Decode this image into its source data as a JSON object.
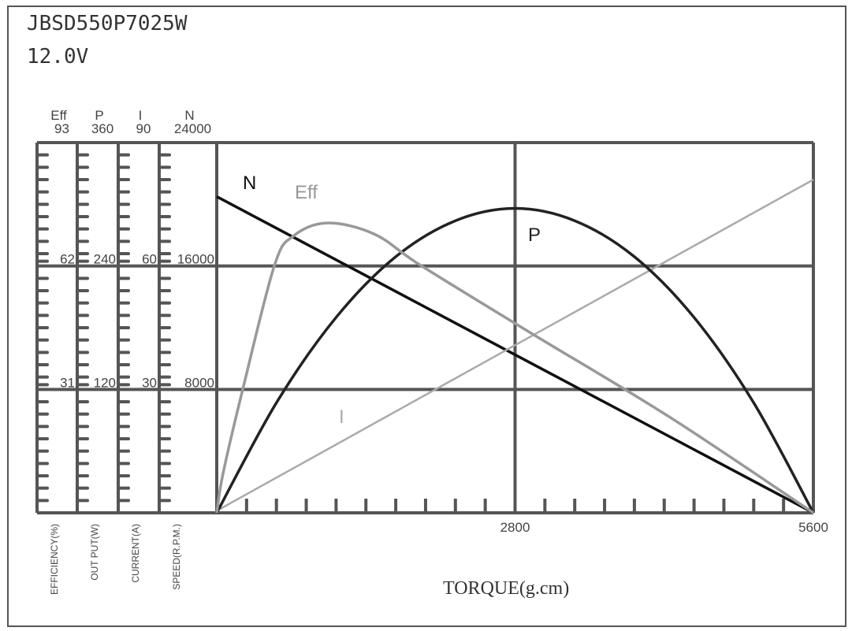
{
  "header": {
    "model": "JBSD550P7025W",
    "voltage": "12.0V"
  },
  "chart_data": {
    "type": "line",
    "xlabel": "TORQUE(g.cm)",
    "xlim": [
      0,
      5600
    ],
    "x_ticks": [
      "2800",
      "5600"
    ],
    "x_minor_step": 280,
    "grid": true,
    "axes": [
      {
        "key": "eff",
        "symbol": "Eff",
        "label": "EFFICIENCY(%)",
        "max": 93,
        "ticks": [
          "31",
          "62",
          "93"
        ]
      },
      {
        "key": "p",
        "symbol": "P",
        "label": "OUT PUT(W)",
        "max": 360,
        "ticks": [
          "120",
          "240",
          "360"
        ]
      },
      {
        "key": "i",
        "symbol": "I",
        "label": "CURRENT(A)",
        "max": 90,
        "ticks": [
          "30",
          "60",
          "90"
        ]
      },
      {
        "key": "n",
        "symbol": "N",
        "label": "SPEED(R.P.M.)",
        "max": 24000,
        "ticks": [
          "8000",
          "16000",
          "24000"
        ]
      }
    ],
    "series": [
      {
        "name": "N",
        "axis": "n",
        "color": "#111111",
        "x": [
          0,
          5600
        ],
        "y": [
          20500,
          0
        ]
      },
      {
        "name": "I",
        "axis": "i",
        "color": "#aaaaaa",
        "x": [
          0,
          5600
        ],
        "y": [
          0.5,
          81
        ]
      },
      {
        "name": "P",
        "axis": "p",
        "color": "#222222",
        "x": [
          0,
          560,
          1120,
          1680,
          2240,
          2800,
          3360,
          3920,
          4480,
          5040,
          5600
        ],
        "y": [
          0,
          107,
          190,
          249,
          284,
          296,
          284,
          249,
          190,
          107,
          0
        ]
      },
      {
        "name": "Eff",
        "axis": "eff",
        "color": "#999999",
        "x": [
          0,
          60,
          244,
          540,
          718,
          1036,
          1480,
          1923,
          2959,
          4254,
          5600
        ],
        "y": [
          0,
          10,
          31,
          62,
          69.5,
          72.8,
          70,
          62,
          45,
          24,
          0
        ]
      }
    ]
  }
}
